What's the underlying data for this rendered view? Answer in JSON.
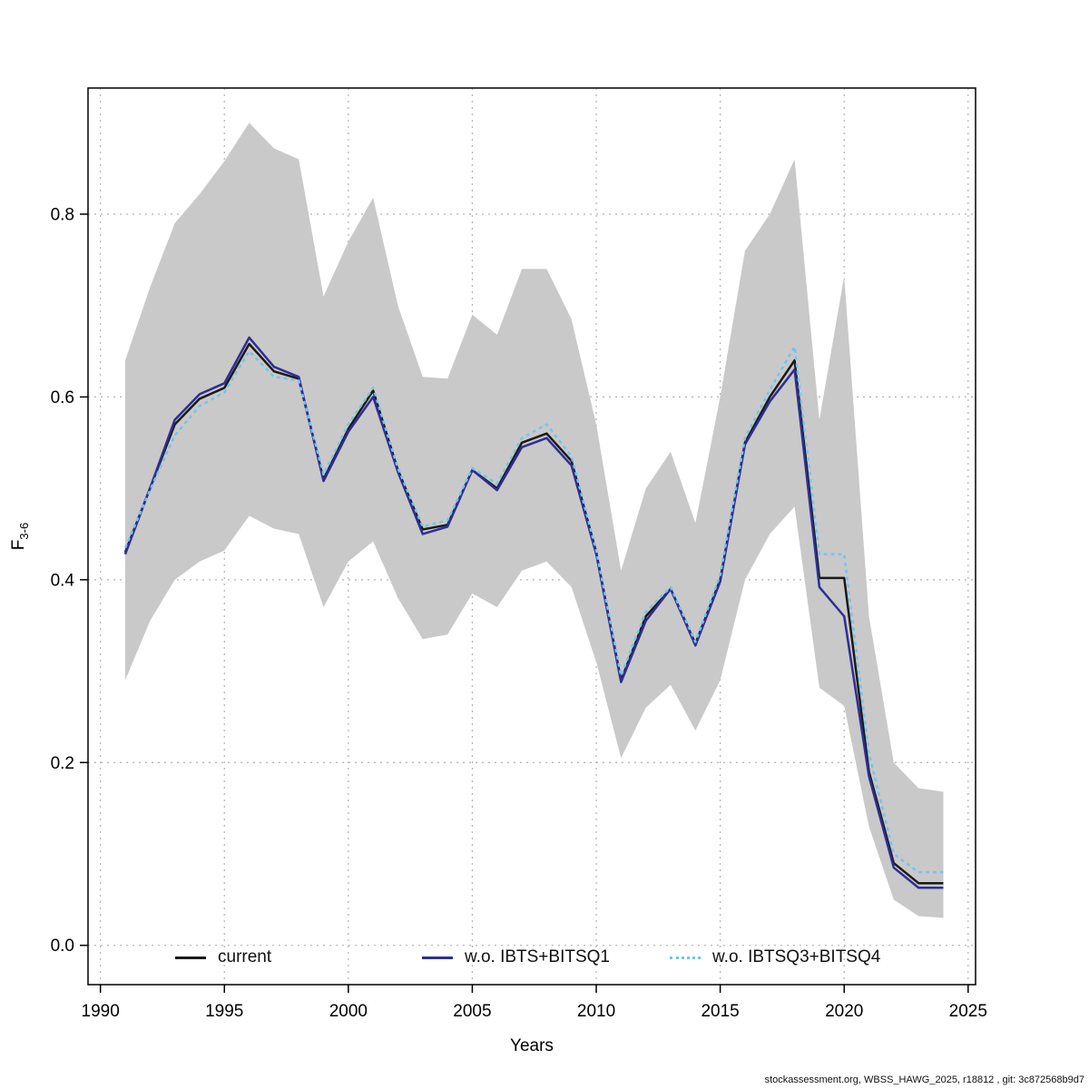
{
  "footer": {
    "text": "stockassessment.org, WBSS_HAWG_2025, r18812 , git: 3c872568b9d7"
  },
  "chart_data": {
    "type": "line",
    "title": "",
    "xlabel": "Years",
    "ylabel_main": "F",
    "ylabel_sub": "3-6",
    "xlim": [
      1989.5,
      2025.3
    ],
    "ylim": [
      -0.043,
      0.938
    ],
    "xticks": [
      1990,
      1995,
      2000,
      2005,
      2010,
      2015,
      2020,
      2025
    ],
    "xtick_labels": [
      "1990",
      "1995",
      "2000",
      "2005",
      "2010",
      "2015",
      "2020",
      "2025"
    ],
    "yticks": [
      0.0,
      0.2,
      0.4,
      0.6,
      0.8
    ],
    "ytick_labels": [
      "0.0",
      "0.2",
      "0.4",
      "0.6",
      "0.8"
    ],
    "grid": "dotted",
    "grid_color": "#b3b3b3",
    "legend_position": "bottom-inside",
    "x": [
      1991,
      1992,
      1993,
      1994,
      1995,
      1996,
      1997,
      1998,
      1999,
      2000,
      2001,
      2002,
      2003,
      2004,
      2005,
      2006,
      2007,
      2008,
      2009,
      2010,
      2011,
      2012,
      2013,
      2014,
      2015,
      2016,
      2017,
      2018,
      2019,
      2020,
      2021,
      2022,
      2023,
      2024
    ],
    "band": {
      "name": "confidence-interval",
      "color": "#c9c9c9",
      "upper": [
        0.64,
        0.72,
        0.79,
        0.822,
        0.858,
        0.9,
        0.872,
        0.86,
        0.71,
        0.77,
        0.818,
        0.7,
        0.622,
        0.62,
        0.69,
        0.668,
        0.74,
        0.74,
        0.685,
        0.57,
        0.41,
        0.5,
        0.54,
        0.462,
        0.6,
        0.76,
        0.8,
        0.86,
        0.575,
        0.732,
        0.36,
        0.2,
        0.172,
        0.168
      ],
      "lower": [
        0.29,
        0.355,
        0.4,
        0.42,
        0.432,
        0.47,
        0.456,
        0.45,
        0.37,
        0.42,
        0.442,
        0.38,
        0.335,
        0.34,
        0.385,
        0.37,
        0.41,
        0.42,
        0.392,
        0.31,
        0.205,
        0.26,
        0.285,
        0.235,
        0.29,
        0.4,
        0.45,
        0.48,
        0.282,
        0.262,
        0.13,
        0.05,
        0.032,
        0.03
      ]
    },
    "series": [
      {
        "name": "current",
        "color": "#1a1a1a",
        "dash": "none",
        "width": 2.5,
        "values": [
          0.43,
          0.5,
          0.57,
          0.598,
          0.61,
          0.658,
          0.628,
          0.62,
          0.51,
          0.565,
          0.607,
          0.52,
          0.455,
          0.46,
          0.52,
          0.5,
          0.55,
          0.56,
          0.53,
          0.43,
          0.29,
          0.36,
          0.39,
          0.33,
          0.4,
          0.55,
          0.6,
          0.64,
          0.402,
          0.402,
          0.19,
          0.09,
          0.068,
          0.068
        ]
      },
      {
        "name": "w.o. IBTS+BITSQ1",
        "color": "#2e2e94",
        "dash": "none",
        "width": 2.5,
        "values": [
          0.428,
          0.5,
          0.575,
          0.603,
          0.615,
          0.665,
          0.633,
          0.622,
          0.508,
          0.562,
          0.6,
          0.518,
          0.45,
          0.458,
          0.52,
          0.498,
          0.545,
          0.555,
          0.525,
          0.428,
          0.288,
          0.355,
          0.39,
          0.328,
          0.398,
          0.548,
          0.595,
          0.63,
          0.392,
          0.36,
          0.185,
          0.085,
          0.063,
          0.063
        ]
      },
      {
        "name": "w.o. IBTSQ3+BITSQ4",
        "color": "#74c4ee",
        "dash": "4 4",
        "width": 2.5,
        "values": [
          0.435,
          0.498,
          0.558,
          0.59,
          0.605,
          0.65,
          0.622,
          0.618,
          0.515,
          0.57,
          0.61,
          0.522,
          0.458,
          0.465,
          0.522,
          0.505,
          0.555,
          0.57,
          0.535,
          0.432,
          0.295,
          0.365,
          0.392,
          0.332,
          0.405,
          0.555,
          0.608,
          0.655,
          0.428,
          0.428,
          0.21,
          0.1,
          0.08,
          0.08
        ]
      }
    ]
  }
}
